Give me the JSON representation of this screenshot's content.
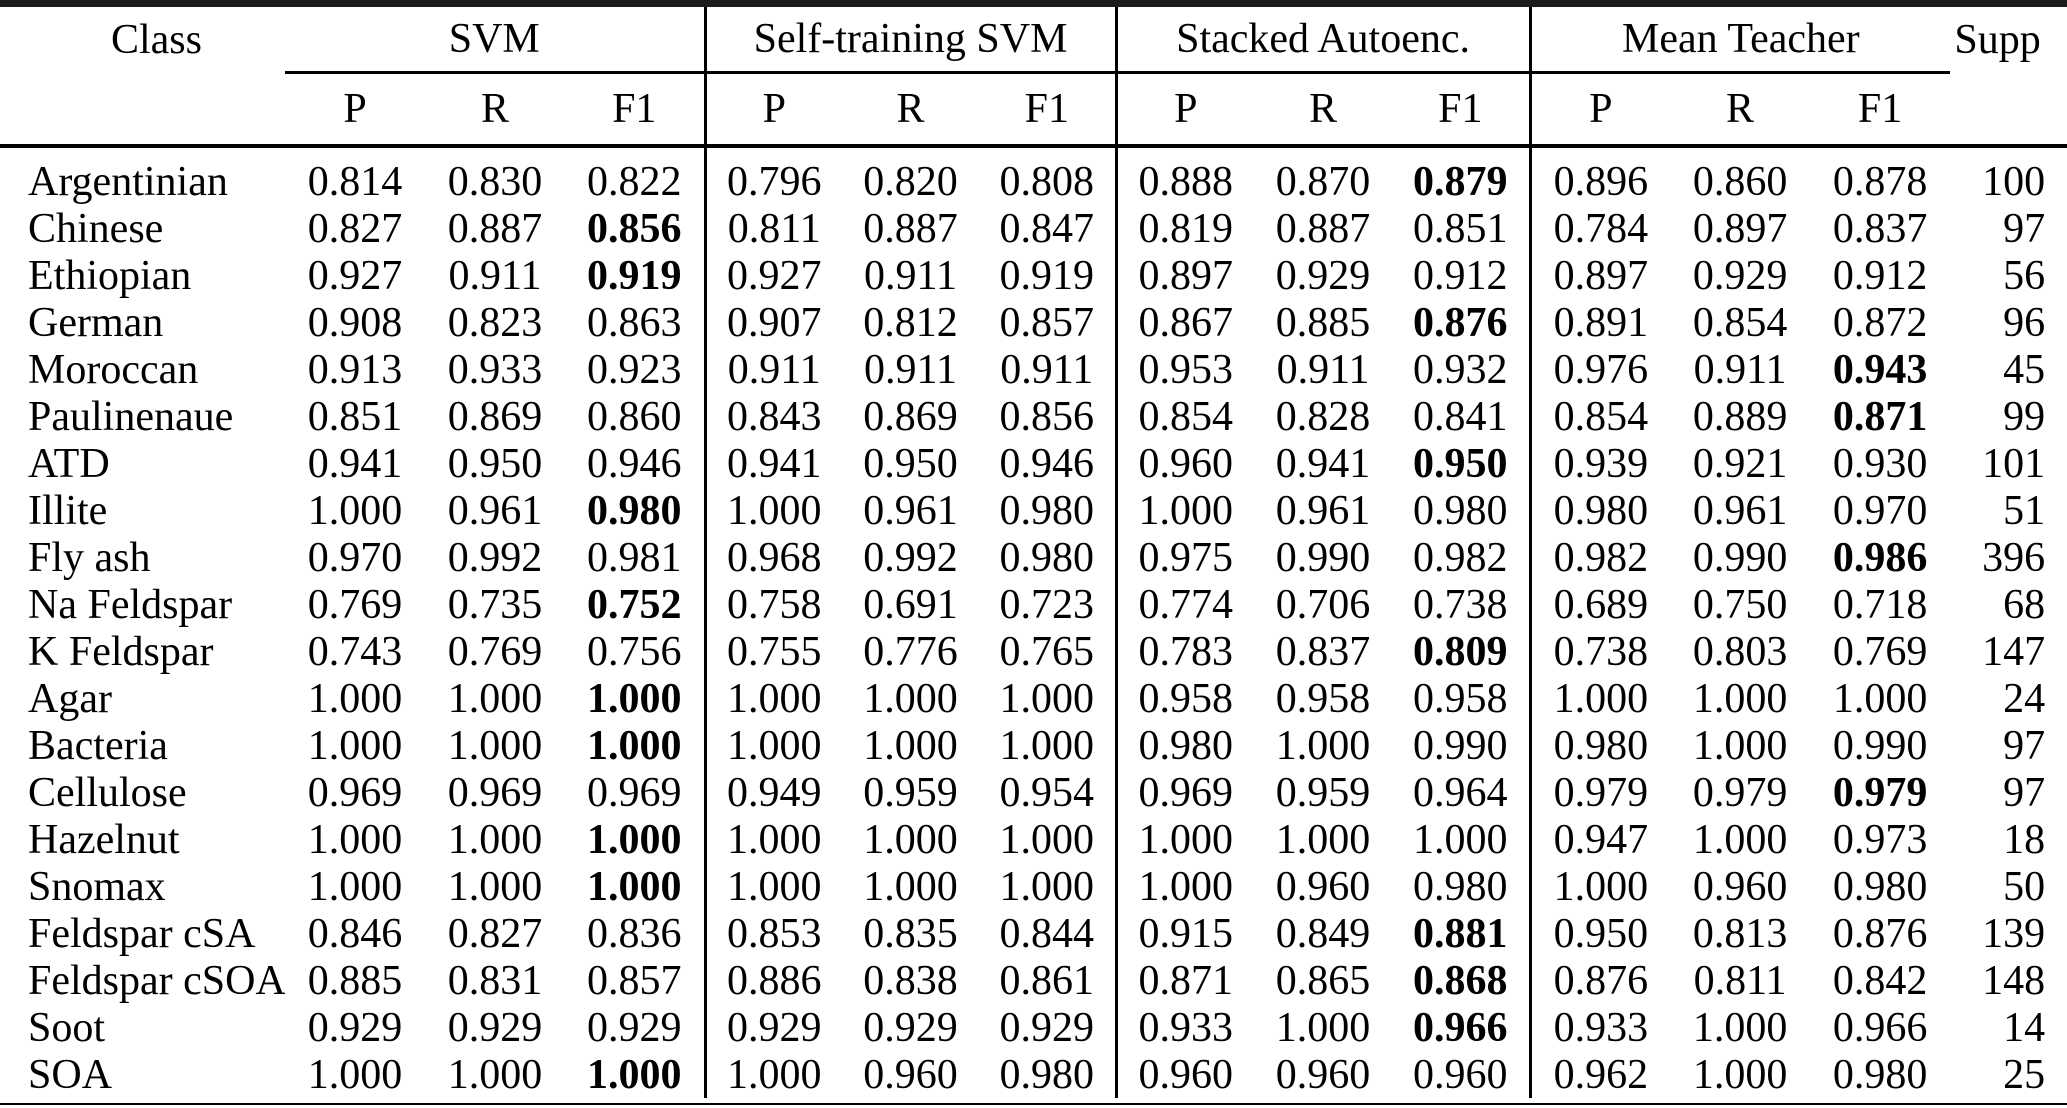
{
  "colors": {
    "background": "#ffffff",
    "text": "#000000",
    "rule": "#1c1c1c"
  },
  "table": {
    "columns": {
      "class": "Class",
      "supp": "Supp"
    },
    "methods": [
      "SVM",
      "Self-training SVM",
      "Stacked Autoenc.",
      "Mean Teacher"
    ],
    "metric_subheaders": [
      "P",
      "R",
      "F1"
    ],
    "rows": [
      {
        "class": "Argentinian",
        "values": [
          "0.814",
          "0.830",
          "0.822",
          "0.796",
          "0.820",
          "0.808",
          "0.888",
          "0.870",
          "0.879",
          "0.896",
          "0.860",
          "0.878"
        ],
        "bold_indices": [
          8
        ],
        "supp": "100"
      },
      {
        "class": "Chinese",
        "values": [
          "0.827",
          "0.887",
          "0.856",
          "0.811",
          "0.887",
          "0.847",
          "0.819",
          "0.887",
          "0.851",
          "0.784",
          "0.897",
          "0.837"
        ],
        "bold_indices": [
          2
        ],
        "supp": "97"
      },
      {
        "class": "Ethiopian",
        "values": [
          "0.927",
          "0.911",
          "0.919",
          "0.927",
          "0.911",
          "0.919",
          "0.897",
          "0.929",
          "0.912",
          "0.897",
          "0.929",
          "0.912"
        ],
        "bold_indices": [
          2
        ],
        "supp": "56"
      },
      {
        "class": "German",
        "values": [
          "0.908",
          "0.823",
          "0.863",
          "0.907",
          "0.812",
          "0.857",
          "0.867",
          "0.885",
          "0.876",
          "0.891",
          "0.854",
          "0.872"
        ],
        "bold_indices": [
          8
        ],
        "supp": "96"
      },
      {
        "class": "Moroccan",
        "values": [
          "0.913",
          "0.933",
          "0.923",
          "0.911",
          "0.911",
          "0.911",
          "0.953",
          "0.911",
          "0.932",
          "0.976",
          "0.911",
          "0.943"
        ],
        "bold_indices": [
          11
        ],
        "supp": "45"
      },
      {
        "class": "Paulinenaue",
        "values": [
          "0.851",
          "0.869",
          "0.860",
          "0.843",
          "0.869",
          "0.856",
          "0.854",
          "0.828",
          "0.841",
          "0.854",
          "0.889",
          "0.871"
        ],
        "bold_indices": [
          11
        ],
        "supp": "99"
      },
      {
        "class": "ATD",
        "values": [
          "0.941",
          "0.950",
          "0.946",
          "0.941",
          "0.950",
          "0.946",
          "0.960",
          "0.941",
          "0.950",
          "0.939",
          "0.921",
          "0.930"
        ],
        "bold_indices": [
          8
        ],
        "supp": "101"
      },
      {
        "class": "Illite",
        "values": [
          "1.000",
          "0.961",
          "0.980",
          "1.000",
          "0.961",
          "0.980",
          "1.000",
          "0.961",
          "0.980",
          "0.980",
          "0.961",
          "0.970"
        ],
        "bold_indices": [
          2
        ],
        "supp": "51"
      },
      {
        "class": "Fly ash",
        "values": [
          "0.970",
          "0.992",
          "0.981",
          "0.968",
          "0.992",
          "0.980",
          "0.975",
          "0.990",
          "0.982",
          "0.982",
          "0.990",
          "0.986"
        ],
        "bold_indices": [
          11
        ],
        "supp": "396"
      },
      {
        "class": "Na Feldspar",
        "values": [
          "0.769",
          "0.735",
          "0.752",
          "0.758",
          "0.691",
          "0.723",
          "0.774",
          "0.706",
          "0.738",
          "0.689",
          "0.750",
          "0.718"
        ],
        "bold_indices": [
          2
        ],
        "supp": "68"
      },
      {
        "class": "K Feldspar",
        "values": [
          "0.743",
          "0.769",
          "0.756",
          "0.755",
          "0.776",
          "0.765",
          "0.783",
          "0.837",
          "0.809",
          "0.738",
          "0.803",
          "0.769"
        ],
        "bold_indices": [
          8
        ],
        "supp": "147"
      },
      {
        "class": "Agar",
        "values": [
          "1.000",
          "1.000",
          "1.000",
          "1.000",
          "1.000",
          "1.000",
          "0.958",
          "0.958",
          "0.958",
          "1.000",
          "1.000",
          "1.000"
        ],
        "bold_indices": [
          2
        ],
        "supp": "24"
      },
      {
        "class": "Bacteria",
        "values": [
          "1.000",
          "1.000",
          "1.000",
          "1.000",
          "1.000",
          "1.000",
          "0.980",
          "1.000",
          "0.990",
          "0.980",
          "1.000",
          "0.990"
        ],
        "bold_indices": [
          2
        ],
        "supp": "97"
      },
      {
        "class": "Cellulose",
        "values": [
          "0.969",
          "0.969",
          "0.969",
          "0.949",
          "0.959",
          "0.954",
          "0.969",
          "0.959",
          "0.964",
          "0.979",
          "0.979",
          "0.979"
        ],
        "bold_indices": [
          11
        ],
        "supp": "97"
      },
      {
        "class": "Hazelnut",
        "values": [
          "1.000",
          "1.000",
          "1.000",
          "1.000",
          "1.000",
          "1.000",
          "1.000",
          "1.000",
          "1.000",
          "0.947",
          "1.000",
          "0.973"
        ],
        "bold_indices": [
          2
        ],
        "supp": "18"
      },
      {
        "class": "Snomax",
        "values": [
          "1.000",
          "1.000",
          "1.000",
          "1.000",
          "1.000",
          "1.000",
          "1.000",
          "0.960",
          "0.980",
          "1.000",
          "0.960",
          "0.980"
        ],
        "bold_indices": [
          2
        ],
        "supp": "50"
      },
      {
        "class": "Feldspar cSA",
        "values": [
          "0.846",
          "0.827",
          "0.836",
          "0.853",
          "0.835",
          "0.844",
          "0.915",
          "0.849",
          "0.881",
          "0.950",
          "0.813",
          "0.876"
        ],
        "bold_indices": [
          8
        ],
        "supp": "139"
      },
      {
        "class": "Feldspar cSOA",
        "values": [
          "0.885",
          "0.831",
          "0.857",
          "0.886",
          "0.838",
          "0.861",
          "0.871",
          "0.865",
          "0.868",
          "0.876",
          "0.811",
          "0.842"
        ],
        "bold_indices": [
          8
        ],
        "supp": "148"
      },
      {
        "class": "Soot",
        "values": [
          "0.929",
          "0.929",
          "0.929",
          "0.929",
          "0.929",
          "0.929",
          "0.933",
          "1.000",
          "0.966",
          "0.933",
          "1.000",
          "0.966"
        ],
        "bold_indices": [
          8
        ],
        "supp": "14"
      },
      {
        "class": "SOA",
        "values": [
          "1.000",
          "1.000",
          "1.000",
          "1.000",
          "0.960",
          "0.980",
          "0.960",
          "0.960",
          "0.960",
          "0.962",
          "1.000",
          "0.980"
        ],
        "bold_indices": [
          2
        ],
        "supp": "25"
      }
    ]
  }
}
